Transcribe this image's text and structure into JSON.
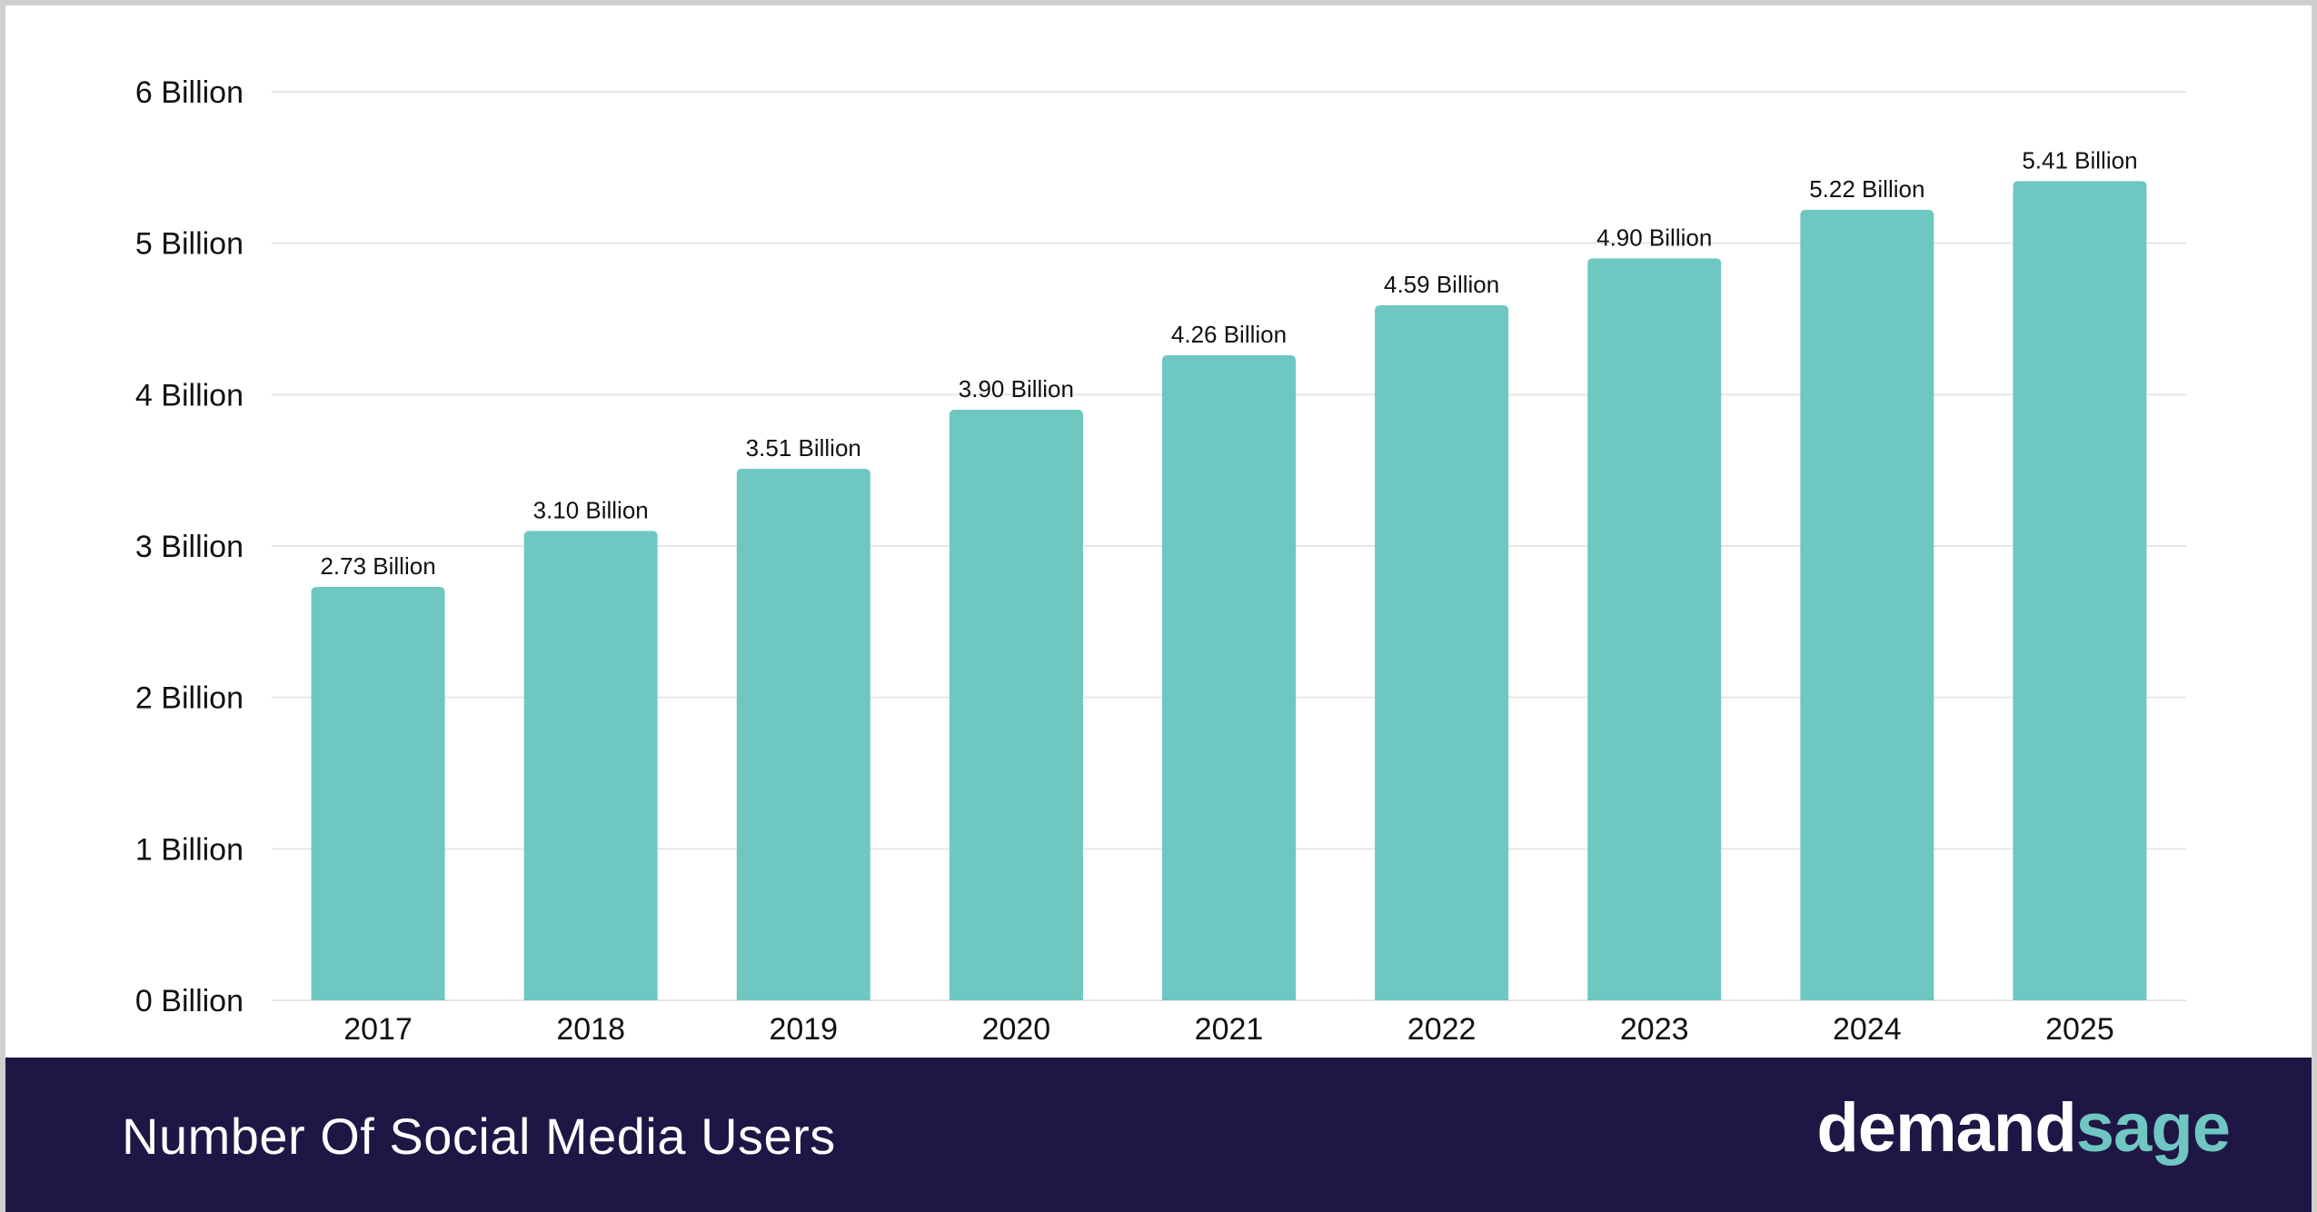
{
  "colors": {
    "bar": "#6ec7c1",
    "grid": "#e6e6e6",
    "footer": "#1f1646",
    "logo_accent": "#6ec7c1"
  },
  "footer": {
    "title": "Number Of Social Media Users"
  },
  "logo": {
    "part1": "demand",
    "part2": "sage"
  },
  "chart_data": {
    "type": "bar",
    "categories": [
      "2017",
      "2018",
      "2019",
      "2020",
      "2021",
      "2022",
      "2023",
      "2024",
      "2025"
    ],
    "values": [
      2.73,
      3.1,
      3.51,
      3.9,
      4.26,
      4.59,
      4.9,
      5.22,
      5.41
    ],
    "data_labels": [
      "2.73 Billion",
      "3.10 Billion",
      "3.51 Billion",
      "3.90 Billion",
      "4.26 Billion",
      "4.59 Billion",
      "4.90 Billion",
      "5.22 Billion",
      "5.41 Billion"
    ],
    "y_ticks": [
      0,
      1,
      2,
      3,
      4,
      5,
      6
    ],
    "y_tick_labels": [
      "0 Billion",
      "1 Billion",
      "2 Billion",
      "3 Billion",
      "4 Billion",
      "5 Billion",
      "6 Billion"
    ],
    "ylim": [
      0,
      6
    ],
    "grid": true,
    "legend": "none"
  }
}
